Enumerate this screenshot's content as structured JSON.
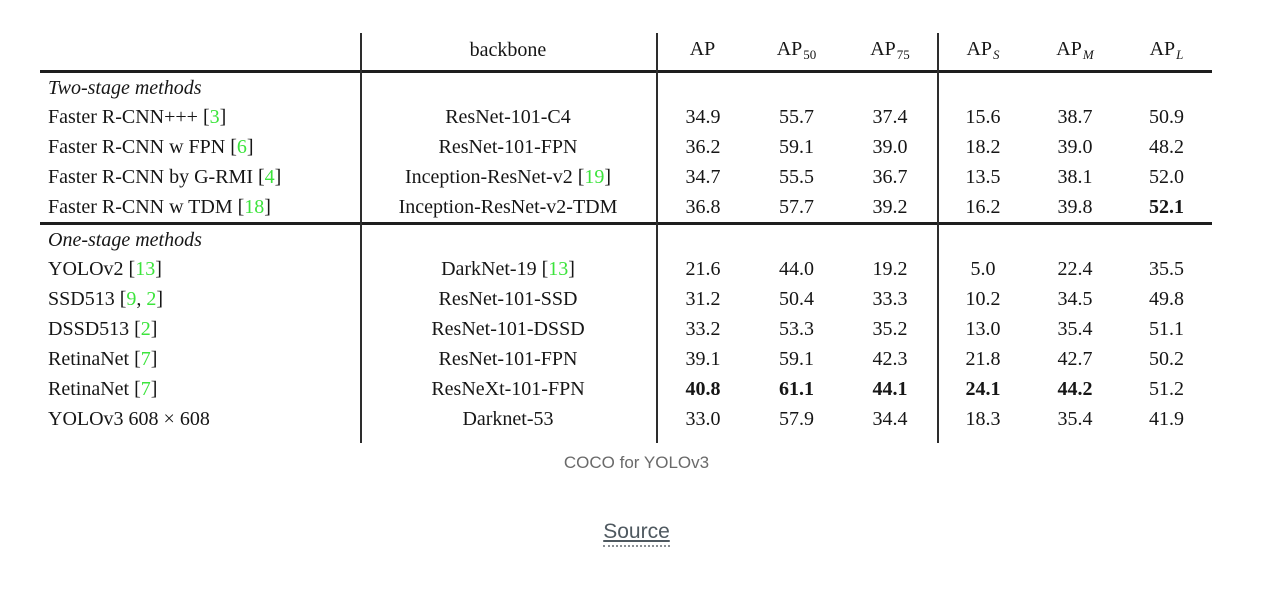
{
  "figure": {
    "caption": "COCO for YOLOv3",
    "source_label": "Source"
  },
  "table": {
    "colors": {
      "citation_green": "#3ce43c",
      "rule_dark": "#1e1e1e"
    },
    "headers": {
      "method": "",
      "backbone": "backbone",
      "metrics": [
        {
          "base": "AP",
          "sub": ""
        },
        {
          "base": "AP",
          "sub": "50"
        },
        {
          "base": "AP",
          "sub": "75"
        },
        {
          "base": "AP",
          "sub": "S"
        },
        {
          "base": "AP",
          "sub": "M"
        },
        {
          "base": "AP",
          "sub": "L"
        }
      ]
    },
    "sections": [
      {
        "label": "Two-stage methods",
        "rows": [
          {
            "method": [
              "Faster R-CNN+++ [",
              {
                "cite": "3"
              },
              "]"
            ],
            "backbone": [
              "ResNet-101-C4"
            ],
            "values": [
              "34.9",
              "55.7",
              "37.4",
              "15.6",
              "38.7",
              "50.9"
            ],
            "bold": []
          },
          {
            "method": [
              "Faster R-CNN w FPN [",
              {
                "cite": "6"
              },
              "]"
            ],
            "backbone": [
              "ResNet-101-FPN"
            ],
            "values": [
              "36.2",
              "59.1",
              "39.0",
              "18.2",
              "39.0",
              "48.2"
            ],
            "bold": []
          },
          {
            "method": [
              "Faster R-CNN by G-RMI [",
              {
                "cite": "4"
              },
              "]"
            ],
            "backbone": [
              "Inception-ResNet-v2 [",
              {
                "cite": "19"
              },
              "]"
            ],
            "values": [
              "34.7",
              "55.5",
              "36.7",
              "13.5",
              "38.1",
              "52.0"
            ],
            "bold": []
          },
          {
            "method": [
              "Faster R-CNN w TDM [",
              {
                "cite": "18"
              },
              "]"
            ],
            "backbone": [
              "Inception-ResNet-v2-TDM"
            ],
            "values": [
              "36.8",
              "57.7",
              "39.2",
              "16.2",
              "39.8",
              "52.1"
            ],
            "bold": [
              5
            ]
          }
        ]
      },
      {
        "label": "One-stage methods",
        "rows": [
          {
            "method": [
              "YOLOv2 [",
              {
                "cite": "13"
              },
              "]"
            ],
            "backbone": [
              "DarkNet-19 [",
              {
                "cite": "13"
              },
              "]"
            ],
            "values": [
              "21.6",
              "44.0",
              "19.2",
              "5.0",
              "22.4",
              "35.5"
            ],
            "bold": []
          },
          {
            "method": [
              "SSD513 [",
              {
                "cite": "9"
              },
              ", ",
              {
                "cite": "2"
              },
              "]"
            ],
            "backbone": [
              "ResNet-101-SSD"
            ],
            "values": [
              "31.2",
              "50.4",
              "33.3",
              "10.2",
              "34.5",
              "49.8"
            ],
            "bold": []
          },
          {
            "method": [
              "DSSD513 [",
              {
                "cite": "2"
              },
              "]"
            ],
            "backbone": [
              "ResNet-101-DSSD"
            ],
            "values": [
              "33.2",
              "53.3",
              "35.2",
              "13.0",
              "35.4",
              "51.1"
            ],
            "bold": []
          },
          {
            "method": [
              "RetinaNet [",
              {
                "cite": "7"
              },
              "]"
            ],
            "backbone": [
              "ResNet-101-FPN"
            ],
            "values": [
              "39.1",
              "59.1",
              "42.3",
              "21.8",
              "42.7",
              "50.2"
            ],
            "bold": []
          },
          {
            "method": [
              "RetinaNet [",
              {
                "cite": "7"
              },
              "]"
            ],
            "backbone": [
              "ResNeXt-101-FPN"
            ],
            "values": [
              "40.8",
              "61.1",
              "44.1",
              "24.1",
              "44.2",
              "51.2"
            ],
            "bold": [
              0,
              1,
              2,
              3,
              4
            ]
          },
          {
            "method": [
              "YOLOv3 608 × 608"
            ],
            "backbone": [
              "Darknet-53"
            ],
            "values": [
              "33.0",
              "57.9",
              "34.4",
              "18.3",
              "35.4",
              "41.9"
            ],
            "bold": []
          }
        ]
      }
    ]
  }
}
